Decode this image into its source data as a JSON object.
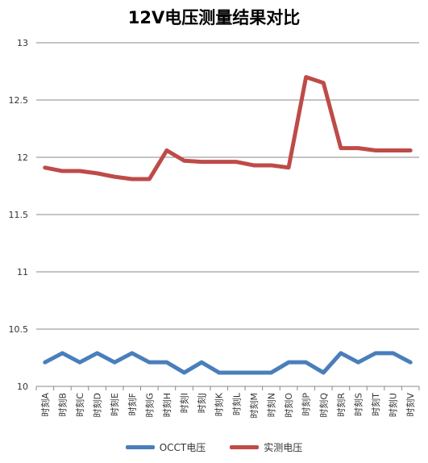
{
  "chart_data": {
    "type": "line",
    "title": "12V电压测量结果对比",
    "xlabel": "",
    "ylabel": "",
    "categories": [
      "时刻A",
      "时刻B",
      "时刻C",
      "时刻D",
      "时刻E",
      "时刻F",
      "时刻G",
      "时刻H",
      "时刻I",
      "时刻J",
      "时刻K",
      "时刻L",
      "时刻M",
      "时刻N",
      "时刻O",
      "时刻P",
      "时刻Q",
      "时刻R",
      "时刻S",
      "时刻T",
      "时刻U",
      "时刻V"
    ],
    "ylim": [
      10,
      13
    ],
    "yticks": [
      "13",
      "12.5",
      "12",
      "11.5",
      "11",
      "10.5",
      "10"
    ],
    "grid": true,
    "legend_position": "bottom",
    "series": [
      {
        "name": "OCCT电压",
        "color": "#4A7EBB",
        "values": [
          10.21,
          10.29,
          10.21,
          10.29,
          10.21,
          10.29,
          10.21,
          10.21,
          10.12,
          10.21,
          10.12,
          10.12,
          10.12,
          10.12,
          10.21,
          10.21,
          10.12,
          10.29,
          10.21,
          10.29,
          10.29,
          10.21
        ]
      },
      {
        "name": "实测电压",
        "color": "#BE4B48",
        "values": [
          11.91,
          11.88,
          11.88,
          11.86,
          11.83,
          11.81,
          11.81,
          12.06,
          11.97,
          11.96,
          11.96,
          11.96,
          11.93,
          11.93,
          11.91,
          12.7,
          12.65,
          12.08,
          12.08,
          12.06,
          12.06,
          12.06
        ]
      }
    ]
  }
}
